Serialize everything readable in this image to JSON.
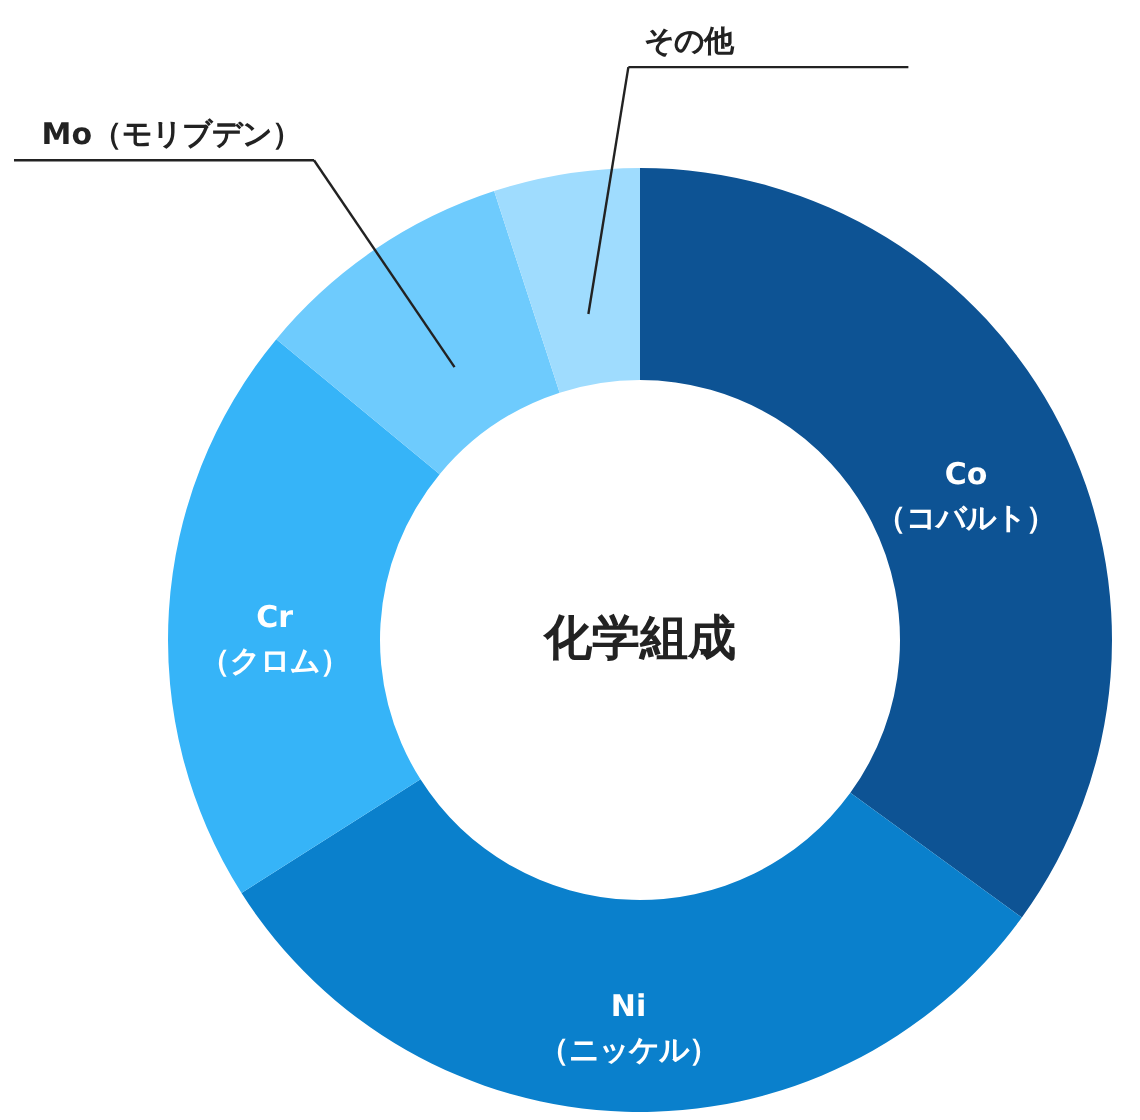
{
  "chart_data": {
    "type": "donut",
    "title": "化学組成",
    "categories": [
      "Co\n（コバルト）",
      "Ni\n（ニッケル）",
      "Cr\n（クロム）",
      "Mo（モリブデン）",
      "その他"
    ],
    "values": [
      35,
      31,
      20,
      9,
      5
    ],
    "colors": [
      "#0d5394",
      "#0a80cc",
      "#36b4f8",
      "#6ecbfd",
      "#9fdcfe"
    ]
  }
}
